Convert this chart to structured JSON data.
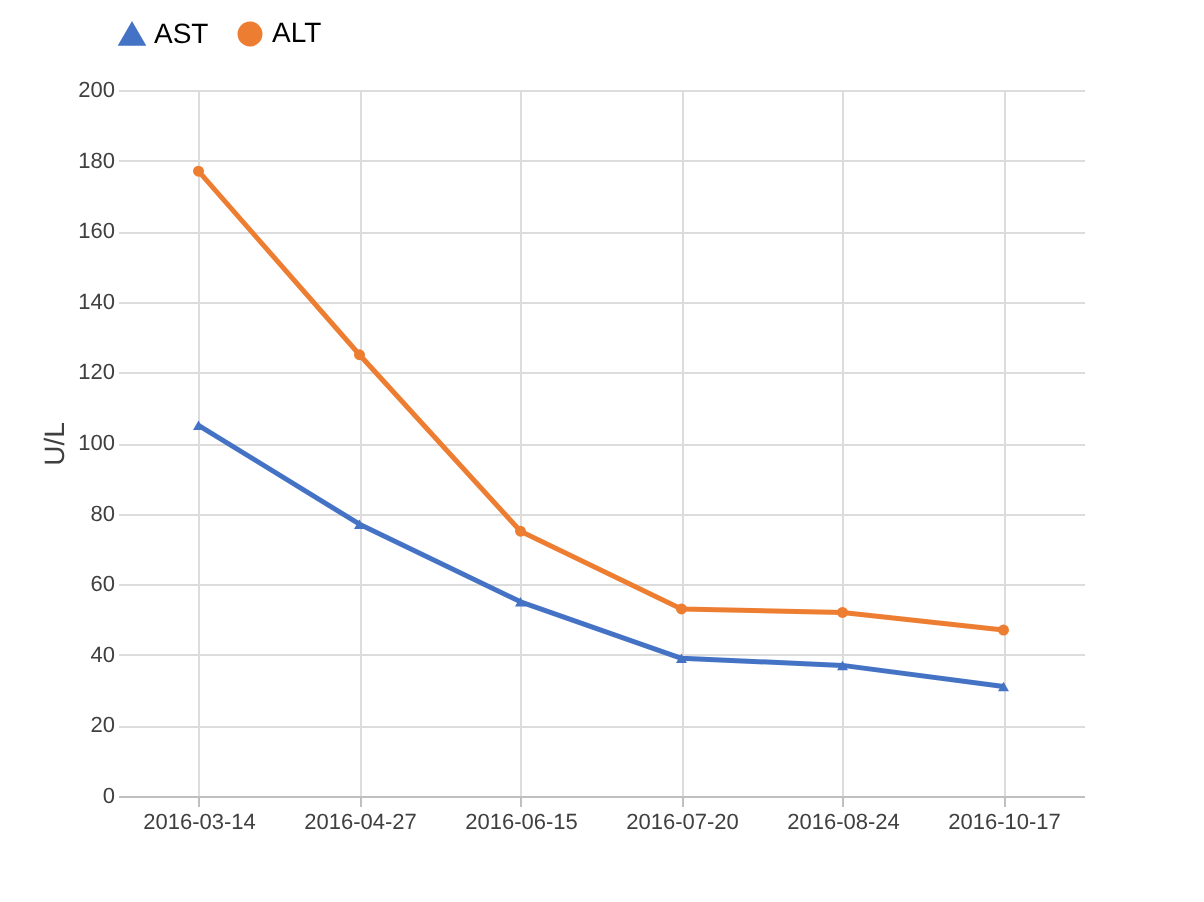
{
  "chart_data": {
    "type": "line",
    "ylabel": "U/L",
    "categories": [
      "2016-03-14",
      "2016-04-27",
      "2016-06-15",
      "2016-07-20",
      "2016-08-24",
      "2016-10-17"
    ],
    "series": [
      {
        "name": "AST",
        "color": "#4472c4",
        "marker": "triangle",
        "values": [
          105,
          77,
          55,
          39,
          37,
          31
        ]
      },
      {
        "name": "ALT",
        "color": "#ed7d31",
        "marker": "circle",
        "values": [
          177,
          125,
          75,
          53,
          52,
          47
        ]
      }
    ],
    "ylim": [
      0,
      200
    ],
    "yticks": [
      0,
      20,
      40,
      60,
      80,
      100,
      120,
      140,
      160,
      180,
      200
    ],
    "grid": true,
    "legend": "top"
  }
}
